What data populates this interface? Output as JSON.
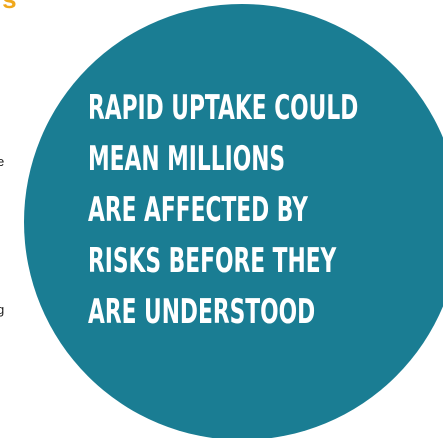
{
  "corner_text": "rs",
  "edge_fragments": [
    "e",
    "g",
    ","
  ],
  "callout": {
    "lines": [
      "RAPID UPTAKE COULD",
      "MEAN MILLIONS",
      "ARE AFFECTED BY",
      "RISKS  BEFORE THEY",
      "ARE UNDERSTOOD"
    ],
    "circle_color": "#1a7d93",
    "text_color": "#ffffff"
  },
  "accent_color": "#f0a81c"
}
